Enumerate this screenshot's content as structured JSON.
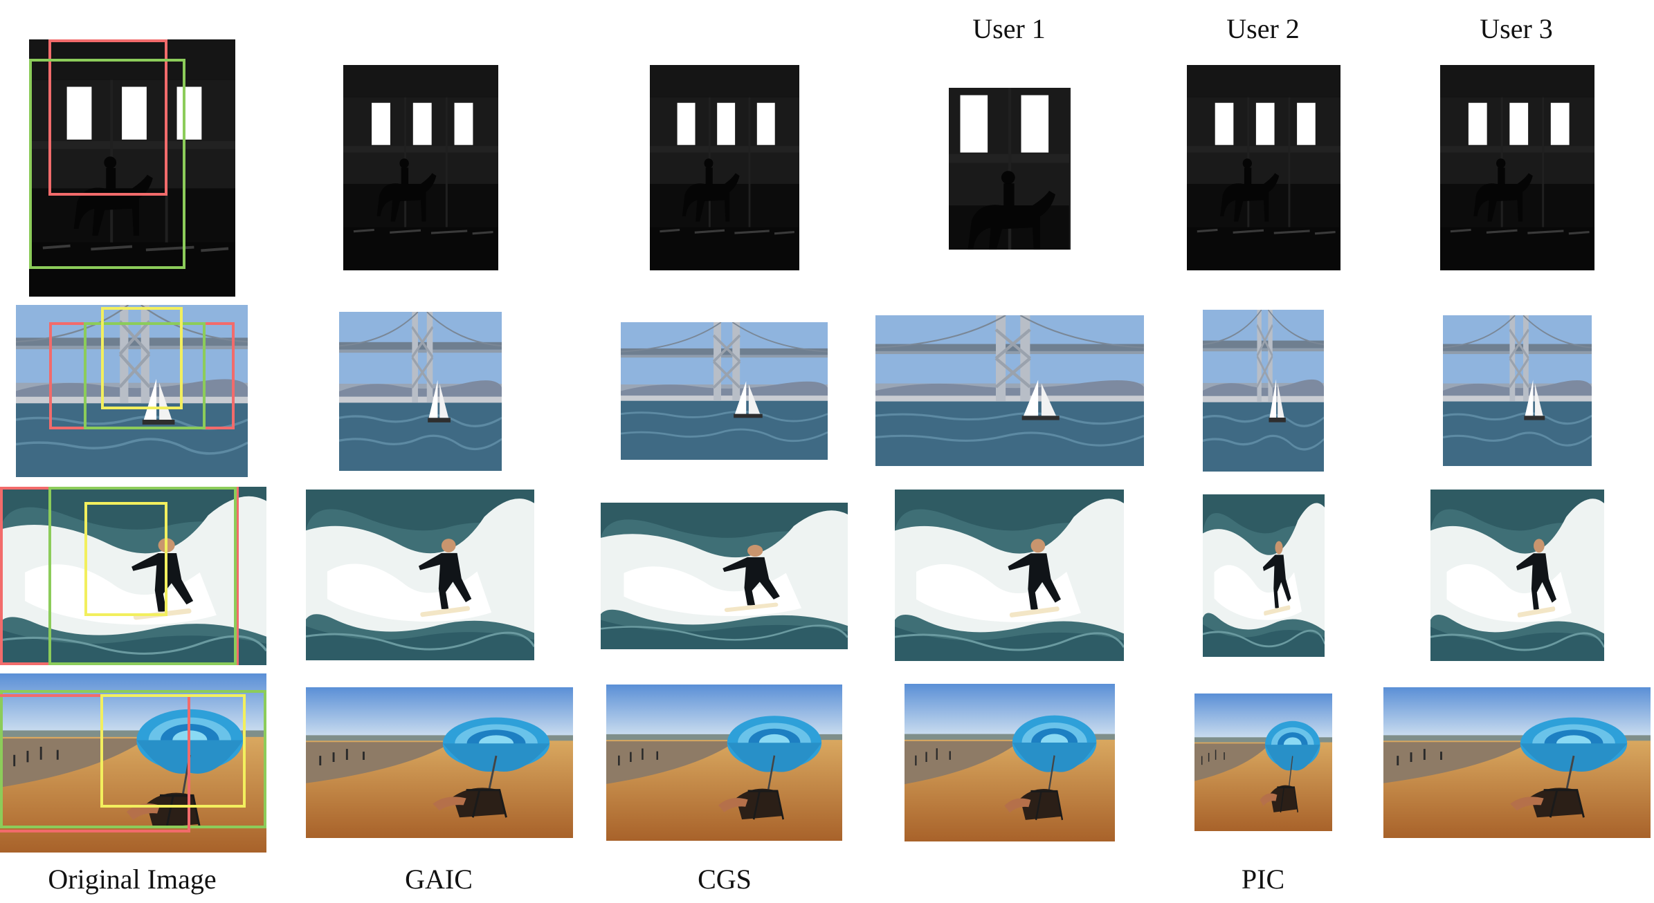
{
  "headers": {
    "user1": "User 1",
    "user2": "User 2",
    "user3": "User 3"
  },
  "footers": {
    "original": "Original Image",
    "gaic": "GAIC",
    "cgs": "CGS",
    "pic": "PIC"
  },
  "crop_colors": {
    "red": "#f26b6b",
    "green": "#8ccc5a",
    "yellow": "#f2ef5e"
  },
  "scenes": [
    "horse-silhouette",
    "bridge-sailboat",
    "surfer-wave",
    "beach-umbrella"
  ]
}
